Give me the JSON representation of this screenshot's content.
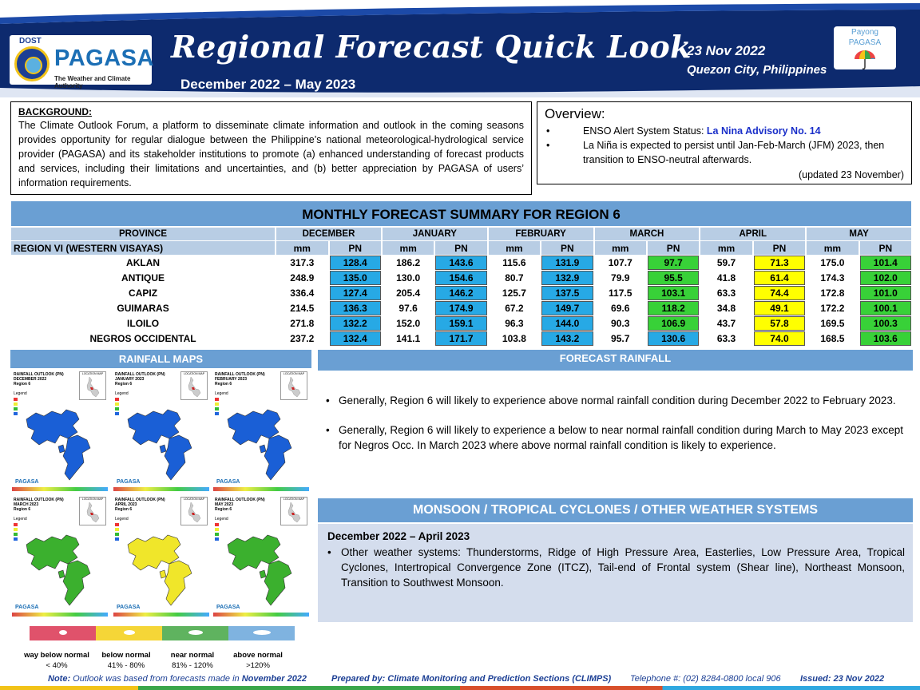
{
  "header": {
    "logo_dost": "DOST",
    "logo_name": "PAGASA",
    "logo_sub": "The Weather and Climate Authority",
    "title": "Regional Forecast Quick Look",
    "period": "December 2022 – May 2023",
    "date": "23 Nov 2022",
    "location": "Quezon City, Philippines",
    "payong_line1": "Payong",
    "payong_line2": "PAGASA"
  },
  "background": {
    "heading": "BACKGROUND:",
    "text": "The Climate Outlook Forum, a platform to disseminate climate information and outlook in the coming seasons provides opportunity for regular dialogue between the Philippine’s national meteorological-hydrological service provider (PAGASA) and its stakeholder institutions to promote (a) enhanced understanding of forecast products and services, including their limitations and uncertainties, and (b) better appreciation by PAGASA of users’ information requirements."
  },
  "overview": {
    "heading": "Overview:",
    "enso_label": "ENSO Alert System Status: ",
    "enso_value": "La Nina Advisory No. 14",
    "item2": "La Niña is expected to persist until Jan-Feb-March (JFM) 2023, then transition to ENSO-neutral afterwards.",
    "updated": "(updated 23 November)"
  },
  "table": {
    "title": "MONTHLY FORECAST SUMMARY FOR REGION 6",
    "province_header": "PROVINCE",
    "months": [
      "DECEMBER",
      "JANUARY",
      "FEBRUARY",
      "MARCH",
      "APRIL",
      "MAY"
    ],
    "mm_label": "mm",
    "pn_label": "PN",
    "region_label": "REGION VI (WESTERN VISAYAS)",
    "rows": [
      {
        "province": "AKLAN",
        "values": [
          "317.3",
          "128.4",
          "186.2",
          "143.6",
          "115.6",
          "131.9",
          "107.7",
          "97.7",
          "59.7",
          "71.3",
          "175.0",
          "101.4"
        ]
      },
      {
        "province": "ANTIQUE",
        "values": [
          "248.9",
          "135.0",
          "130.0",
          "154.6",
          "80.7",
          "132.9",
          "79.9",
          "95.5",
          "41.8",
          "61.4",
          "174.3",
          "102.0"
        ]
      },
      {
        "province": "CAPIZ",
        "values": [
          "336.4",
          "127.4",
          "205.4",
          "146.2",
          "125.7",
          "137.5",
          "117.5",
          "103.1",
          "63.3",
          "74.4",
          "172.8",
          "101.0"
        ]
      },
      {
        "province": "GUIMARAS",
        "values": [
          "214.5",
          "136.3",
          "97.6",
          "174.9",
          "67.2",
          "149.7",
          "69.6",
          "118.2",
          "34.8",
          "49.1",
          "172.2",
          "100.1"
        ]
      },
      {
        "province": "ILOILO",
        "values": [
          "271.8",
          "132.2",
          "152.0",
          "159.1",
          "96.3",
          "144.0",
          "90.3",
          "106.9",
          "43.7",
          "57.8",
          "169.5",
          "100.3"
        ]
      },
      {
        "province": "NEGROS OCCIDENTAL",
        "values": [
          "237.2",
          "132.4",
          "141.1",
          "171.7",
          "103.8",
          "143.2",
          "95.7",
          "130.6",
          "63.3",
          "74.0",
          "168.5",
          "103.6"
        ]
      }
    ],
    "pn_colors": [
      [
        "blue",
        "blue",
        "blue",
        "green",
        "yellow",
        "green"
      ],
      [
        "blue",
        "blue",
        "blue",
        "green",
        "yellow",
        "green"
      ],
      [
        "blue",
        "blue",
        "blue",
        "green",
        "yellow",
        "green"
      ],
      [
        "blue",
        "blue",
        "blue",
        "green",
        "yellow",
        "green"
      ],
      [
        "blue",
        "blue",
        "blue",
        "green",
        "yellow",
        "green"
      ],
      [
        "blue",
        "blue",
        "blue",
        "blue",
        "yellow",
        "green"
      ]
    ],
    "colors": {
      "blue": "#27a9e5",
      "green": "#38d138",
      "yellow": "#ffff00"
    }
  },
  "rainfall_maps": {
    "heading": "RAINFALL MAPS",
    "maps": [
      {
        "title": "RAINFALL OUTLOOK (PN)",
        "month": "DECEMBER 2022",
        "region": "Region 6",
        "fill": "#1a5fd6"
      },
      {
        "title": "RAINFALL OUTLOOK (PN)",
        "month": "JANUARY 2023",
        "region": "Region 6",
        "fill": "#1a5fd6"
      },
      {
        "title": "RAINFALL OUTLOOK (PN)",
        "month": "FEBRUARY 2023",
        "region": "Region 6",
        "fill": "#1a5fd6"
      },
      {
        "title": "RAINFALL OUTLOOK (PN)",
        "month": "MARCH 2023",
        "region": "Region 6",
        "fill": "#3bb02e"
      },
      {
        "title": "RAINFALL OUTLOOK (PN)",
        "month": "APRIL 2023",
        "region": "Region 6",
        "fill": "#f0e62a"
      },
      {
        "title": "RAINFALL OUTLOOK (PN)",
        "month": "MAY 2023",
        "region": "Region 6",
        "fill": "#3bb02e"
      }
    ],
    "legend_word": "Legend",
    "inset_label": "LOCATION MAP",
    "map_logo": "PAGASA"
  },
  "legend": {
    "items": [
      {
        "label": "way below normal",
        "range": "< 40%",
        "color": "#e0526b"
      },
      {
        "label": "below normal",
        "range": "41% - 80%",
        "color": "#f5d637"
      },
      {
        "label": "near normal",
        "range": "81% - 120%",
        "color": "#5fb35f"
      },
      {
        "label": "above normal",
        "range": ">120%",
        "color": "#7fb3e0"
      }
    ]
  },
  "forecast": {
    "heading": "FORECAST RAINFALL",
    "items": [
      "Generally, Region 6 will likely to experience above normal rainfall condition during December 2022 to February 2023.",
      "Generally, Region 6 will likely to experience a below to near normal rainfall condition during March to May 2023 except for Negros Occ. In March 2023 where above normal rainfall condition is likely to experience."
    ]
  },
  "monsoon": {
    "heading": "MONSOON / TROPICAL CYCLONES / OTHER WEATHER SYSTEMS",
    "subheading": "December 2022 – April 2023",
    "text": "Other weather systems: Thunderstorms,  Ridge of High Pressure Area,  Easterlies, Low Pressure Area, Tropical Cyclones, Intertropical Convergence Zone (ITCZ), Tail-end of Frontal system (Shear line), Northeast Monsoon, Transition to Southwest Monsoon."
  },
  "footer": {
    "note_label": "Note: ",
    "note_text": "Outlook was based from forecasts made in ",
    "note_month": "November 2022",
    "prepared": "Prepared by: Climate Monitoring and Prediction Sections (CLIMPS)",
    "telephone": "Telephone #: (02) 8284-0800 local 906",
    "issued": "Issued: 23 Nov 2022"
  }
}
